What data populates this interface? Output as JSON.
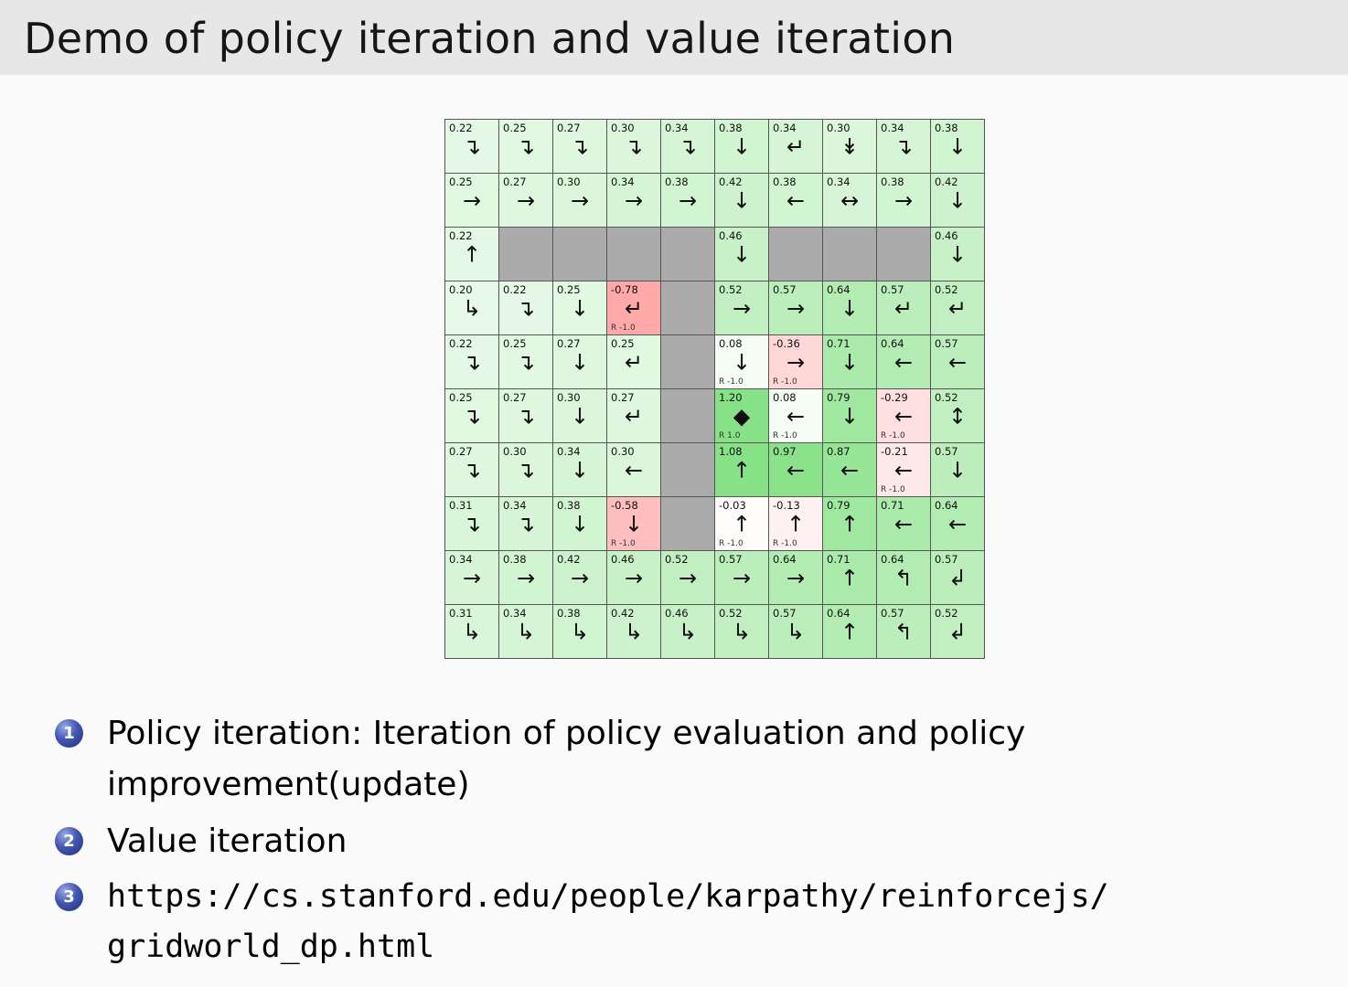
{
  "slide": {
    "title": "Demo of policy iteration and value iteration"
  },
  "colors": {
    "title_bar_bg": "#e7e7e7",
    "wall_cell": "#ababab",
    "goal_green": "#87e187",
    "penalty_red": "#ffa9a9",
    "bullet_ball_blue": "#232e86"
  },
  "grid": {
    "rows": [
      [
        {
          "v": "0.22",
          "a": "↴"
        },
        {
          "v": "0.25",
          "a": "↴"
        },
        {
          "v": "0.27",
          "a": "↴"
        },
        {
          "v": "0.30",
          "a": "↴"
        },
        {
          "v": "0.34",
          "a": "↴"
        },
        {
          "v": "0.38",
          "a": "↓"
        },
        {
          "v": "0.34",
          "a": "↵"
        },
        {
          "v": "0.30",
          "a": "↡"
        },
        {
          "v": "0.34",
          "a": "↴"
        },
        {
          "v": "0.38",
          "a": "↓"
        }
      ],
      [
        {
          "v": "0.25",
          "a": "→"
        },
        {
          "v": "0.27",
          "a": "→"
        },
        {
          "v": "0.30",
          "a": "→"
        },
        {
          "v": "0.34",
          "a": "→"
        },
        {
          "v": "0.38",
          "a": "→"
        },
        {
          "v": "0.42",
          "a": "↓"
        },
        {
          "v": "0.38",
          "a": "←"
        },
        {
          "v": "0.34",
          "a": "↔"
        },
        {
          "v": "0.38",
          "a": "→"
        },
        {
          "v": "0.42",
          "a": "↓"
        }
      ],
      [
        {
          "v": "0.22",
          "a": "↑"
        },
        {
          "wall": true
        },
        {
          "wall": true
        },
        {
          "wall": true
        },
        {
          "wall": true
        },
        {
          "v": "0.46",
          "a": "↓"
        },
        {
          "wall": true
        },
        {
          "wall": true
        },
        {
          "wall": true
        },
        {
          "v": "0.46",
          "a": "↓"
        }
      ],
      [
        {
          "v": "0.20",
          "a": "↳"
        },
        {
          "v": "0.22",
          "a": "↴"
        },
        {
          "v": "0.25",
          "a": "↓"
        },
        {
          "v": "-0.78",
          "a": "↵",
          "r": "R -1.0"
        },
        {
          "wall": true
        },
        {
          "v": "0.52",
          "a": "→"
        },
        {
          "v": "0.57",
          "a": "→"
        },
        {
          "v": "0.64",
          "a": "↓"
        },
        {
          "v": "0.57",
          "a": "↵"
        },
        {
          "v": "0.52",
          "a": "↵"
        }
      ],
      [
        {
          "v": "0.22",
          "a": "↴"
        },
        {
          "v": "0.25",
          "a": "↴"
        },
        {
          "v": "0.27",
          "a": "↓"
        },
        {
          "v": "0.25",
          "a": "↵"
        },
        {
          "wall": true
        },
        {
          "v": "0.08",
          "a": "↓",
          "r": "R -1.0"
        },
        {
          "v": "-0.36",
          "a": "→",
          "r": "R -1.0"
        },
        {
          "v": "0.71",
          "a": "↓"
        },
        {
          "v": "0.64",
          "a": "←"
        },
        {
          "v": "0.57",
          "a": "←"
        }
      ],
      [
        {
          "v": "0.25",
          "a": "↴"
        },
        {
          "v": "0.27",
          "a": "↴"
        },
        {
          "v": "0.30",
          "a": "↓"
        },
        {
          "v": "0.27",
          "a": "↵"
        },
        {
          "wall": true
        },
        {
          "v": "1.20",
          "a": "◆",
          "r": "R 1.0"
        },
        {
          "v": "0.08",
          "a": "←",
          "r": "R -1.0"
        },
        {
          "v": "0.79",
          "a": "↓"
        },
        {
          "v": "-0.29",
          "a": "←",
          "r": "R -1.0"
        },
        {
          "v": "0.52",
          "a": "↕"
        }
      ],
      [
        {
          "v": "0.27",
          "a": "↴"
        },
        {
          "v": "0.30",
          "a": "↴"
        },
        {
          "v": "0.34",
          "a": "↓"
        },
        {
          "v": "0.30",
          "a": "←"
        },
        {
          "wall": true
        },
        {
          "v": "1.08",
          "a": "↑"
        },
        {
          "v": "0.97",
          "a": "←"
        },
        {
          "v": "0.87",
          "a": "←"
        },
        {
          "v": "-0.21",
          "a": "←",
          "r": "R -1.0"
        },
        {
          "v": "0.57",
          "a": "↓"
        }
      ],
      [
        {
          "v": "0.31",
          "a": "↴"
        },
        {
          "v": "0.34",
          "a": "↴"
        },
        {
          "v": "0.38",
          "a": "↓"
        },
        {
          "v": "-0.58",
          "a": "↓",
          "r": "R -1.0"
        },
        {
          "wall": true
        },
        {
          "v": "-0.03",
          "a": "↑",
          "r": "R -1.0"
        },
        {
          "v": "-0.13",
          "a": "↑",
          "r": "R -1.0"
        },
        {
          "v": "0.79",
          "a": "↑"
        },
        {
          "v": "0.71",
          "a": "←"
        },
        {
          "v": "0.64",
          "a": "←"
        }
      ],
      [
        {
          "v": "0.34",
          "a": "→"
        },
        {
          "v": "0.38",
          "a": "→"
        },
        {
          "v": "0.42",
          "a": "→"
        },
        {
          "v": "0.46",
          "a": "→"
        },
        {
          "v": "0.52",
          "a": "→"
        },
        {
          "v": "0.57",
          "a": "→"
        },
        {
          "v": "0.64",
          "a": "→"
        },
        {
          "v": "0.71",
          "a": "↑"
        },
        {
          "v": "0.64",
          "a": "↰"
        },
        {
          "v": "0.57",
          "a": "↲"
        }
      ],
      [
        {
          "v": "0.31",
          "a": "↳"
        },
        {
          "v": "0.34",
          "a": "↳"
        },
        {
          "v": "0.38",
          "a": "↳"
        },
        {
          "v": "0.42",
          "a": "↳"
        },
        {
          "v": "0.46",
          "a": "↳"
        },
        {
          "v": "0.52",
          "a": "↳"
        },
        {
          "v": "0.57",
          "a": "↳"
        },
        {
          "v": "0.64",
          "a": "↑"
        },
        {
          "v": "0.57",
          "a": "↰"
        },
        {
          "v": "0.52",
          "a": "↲"
        }
      ]
    ]
  },
  "list": {
    "items": [
      {
        "num": "1",
        "text": "Policy iteration: Iteration of policy evaluation and policy\nimprovement(update)",
        "mono": false,
        "link": false
      },
      {
        "num": "2",
        "text": "Value iteration",
        "mono": false,
        "link": false
      },
      {
        "num": "3",
        "text": "https://cs.stanford.edu/people/karpathy/reinforcejs/\ngridworld_dp.html",
        "mono": true,
        "link": true
      }
    ]
  }
}
